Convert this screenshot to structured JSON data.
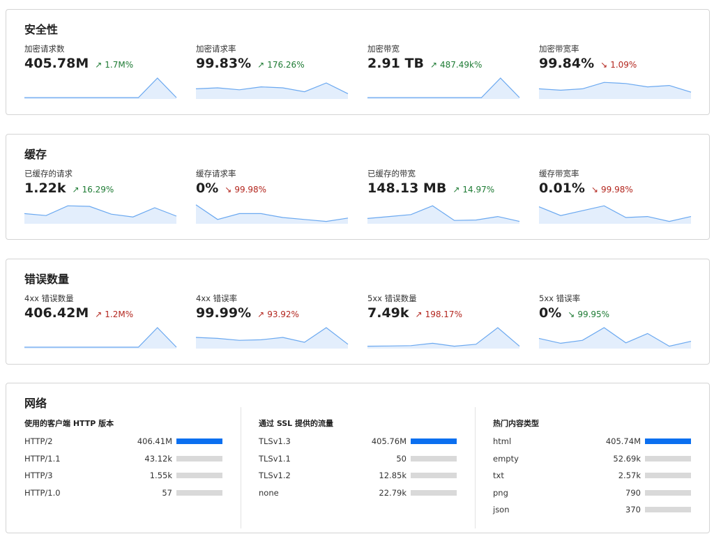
{
  "colors": {
    "up": "#1e7b34",
    "down_bad": "#b3261e",
    "spark_line": "#6aa8f0",
    "spark_fill": "#e3eefc",
    "bar": "#0b6ff0",
    "bar_track": "#d9d9d9"
  },
  "sections": [
    {
      "title": "安全性",
      "metrics": [
        {
          "label": "加密请求数",
          "value": "405.78M",
          "change": "1.7M%",
          "direction": "up",
          "status": "good",
          "spark": [
            0,
            0,
            0,
            0,
            0,
            0,
            0,
            1,
            0
          ]
        },
        {
          "label": "加密请求率",
          "value": "99.83%",
          "change": "176.26%",
          "direction": "up",
          "status": "good",
          "spark": [
            0.45,
            0.5,
            0.4,
            0.55,
            0.5,
            0.3,
            0.75,
            0.2
          ]
        },
        {
          "label": "加密带宽",
          "value": "2.91 TB",
          "change": "487.49k%",
          "direction": "up",
          "status": "good",
          "spark": [
            0,
            0,
            0,
            0,
            0,
            0,
            0,
            1,
            0
          ]
        },
        {
          "label": "加密带宽率",
          "value": "99.84%",
          "change": "1.09%",
          "direction": "down",
          "status": "bad",
          "spark": [
            0.45,
            0.38,
            0.45,
            0.78,
            0.72,
            0.55,
            0.62,
            0.28
          ]
        }
      ]
    },
    {
      "title": "缓存",
      "metrics": [
        {
          "label": "已缓存的请求",
          "value": "1.22k",
          "change": "16.29%",
          "direction": "up",
          "status": "good",
          "spark": [
            0.45,
            0.35,
            0.85,
            0.82,
            0.42,
            0.28,
            0.75,
            0.32
          ]
        },
        {
          "label": "缓存请求率",
          "value": "0%",
          "change": "99.98%",
          "direction": "down",
          "status": "bad",
          "spark": [
            0.9,
            0.15,
            0.45,
            0.45,
            0.25,
            0.15,
            0.05,
            0.22
          ]
        },
        {
          "label": "已缓存的带宽",
          "value": "148.13 MB",
          "change": "14.97%",
          "direction": "up",
          "status": "good",
          "spark": [
            0.2,
            0.3,
            0.4,
            0.85,
            0.1,
            0.12,
            0.3,
            0.05
          ]
        },
        {
          "label": "缓存带宽率",
          "value": "0.01%",
          "change": "99.98%",
          "direction": "down",
          "status": "bad",
          "spark": [
            0.8,
            0.35,
            0.6,
            0.85,
            0.25,
            0.3,
            0.05,
            0.3
          ]
        }
      ]
    },
    {
      "title": "错误数量",
      "metrics": [
        {
          "label": "4xx 错误数量",
          "value": "406.42M",
          "change": "1.2M%",
          "direction": "up",
          "status": "bad",
          "spark": [
            0,
            0,
            0,
            0,
            0,
            0,
            0,
            1,
            0
          ]
        },
        {
          "label": "4xx 错误率",
          "value": "99.99%",
          "change": "93.92%",
          "direction": "up",
          "status": "bad",
          "spark": [
            0.5,
            0.45,
            0.35,
            0.38,
            0.5,
            0.25,
            1,
            0.15
          ]
        },
        {
          "label": "5xx 错误数量",
          "value": "7.49k",
          "change": "198.17%",
          "direction": "up",
          "status": "bad",
          "spark": [
            0.05,
            0.06,
            0.08,
            0.2,
            0.05,
            0.15,
            1,
            0.05
          ]
        },
        {
          "label": "5xx 错误率",
          "value": "0%",
          "change": "99.95%",
          "direction": "down",
          "status": "good",
          "spark": [
            0.45,
            0.2,
            0.35,
            1,
            0.22,
            0.7,
            0.05,
            0.3
          ]
        }
      ]
    }
  ],
  "network": {
    "title": "网络",
    "columns": [
      {
        "title": "使用的客户端 HTTP 版本",
        "rows": [
          {
            "name": "HTTP/2",
            "value": "406.41M",
            "fill": 1.0
          },
          {
            "name": "HTTP/1.1",
            "value": "43.12k",
            "fill": 0.0
          },
          {
            "name": "HTTP/3",
            "value": "1.55k",
            "fill": 0.0
          },
          {
            "name": "HTTP/1.0",
            "value": "57",
            "fill": 0.0
          }
        ]
      },
      {
        "title": "通过 SSL 提供的流量",
        "rows": [
          {
            "name": "TLSv1.3",
            "value": "405.76M",
            "fill": 1.0
          },
          {
            "name": "TLSv1.1",
            "value": "50",
            "fill": 0.0
          },
          {
            "name": "TLSv1.2",
            "value": "12.85k",
            "fill": 0.0
          },
          {
            "name": "none",
            "value": "22.79k",
            "fill": 0.0
          }
        ]
      },
      {
        "title": "热门内容类型",
        "rows": [
          {
            "name": "html",
            "value": "405.74M",
            "fill": 1.0
          },
          {
            "name": "empty",
            "value": "52.69k",
            "fill": 0.0
          },
          {
            "name": "txt",
            "value": "2.57k",
            "fill": 0.0
          },
          {
            "name": "png",
            "value": "790",
            "fill": 0.0
          },
          {
            "name": "json",
            "value": "370",
            "fill": 0.0
          }
        ]
      }
    ]
  }
}
